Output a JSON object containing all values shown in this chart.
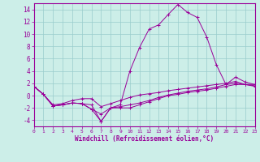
{
  "xlabel": "Windchill (Refroidissement éolien,°C)",
  "background_color": "#cceee8",
  "grid_color": "#99cccc",
  "line_color": "#990099",
  "x_values": [
    0,
    1,
    2,
    3,
    4,
    5,
    6,
    7,
    8,
    9,
    10,
    11,
    12,
    13,
    14,
    15,
    16,
    17,
    18,
    19,
    20,
    21,
    22,
    23
  ],
  "line1_y": [
    1.5,
    0.2,
    -1.7,
    -1.5,
    -1.2,
    -1.3,
    -2.2,
    -4.2,
    -2.0,
    -2.0,
    -2.0,
    -1.5,
    -1.0,
    -0.5,
    0.0,
    0.2,
    0.5,
    0.7,
    0.9,
    1.2,
    1.5,
    1.8,
    1.8,
    1.5
  ],
  "line2_y": [
    1.5,
    0.2,
    -1.7,
    -1.5,
    -1.2,
    -1.3,
    -1.5,
    -4.2,
    -2.0,
    -1.5,
    4.0,
    7.8,
    10.8,
    11.5,
    13.2,
    14.8,
    13.5,
    12.7,
    9.5,
    5.0,
    1.8,
    3.0,
    2.2,
    1.8
  ],
  "line3_y": [
    1.5,
    0.2,
    -1.5,
    -1.3,
    -0.8,
    -0.5,
    -0.5,
    -1.8,
    -1.3,
    -0.8,
    -0.3,
    0.1,
    0.3,
    0.5,
    0.8,
    1.0,
    1.2,
    1.4,
    1.6,
    1.8,
    2.0,
    2.3,
    1.8,
    1.8
  ],
  "line4_y": [
    1.5,
    0.2,
    -1.7,
    -1.5,
    -1.2,
    -1.3,
    -2.2,
    -3.0,
    -2.0,
    -1.8,
    -1.5,
    -1.2,
    -0.8,
    -0.3,
    0.1,
    0.4,
    0.7,
    0.9,
    1.1,
    1.4,
    1.8,
    2.0,
    1.8,
    1.6
  ],
  "ylim": [
    -5,
    15
  ],
  "xlim": [
    0,
    23
  ],
  "yticks": [
    -4,
    -2,
    0,
    2,
    4,
    6,
    8,
    10,
    12,
    14
  ],
  "xticks": [
    0,
    1,
    2,
    3,
    4,
    5,
    6,
    7,
    8,
    9,
    10,
    11,
    12,
    13,
    14,
    15,
    16,
    17,
    18,
    19,
    20,
    21,
    22,
    23
  ]
}
